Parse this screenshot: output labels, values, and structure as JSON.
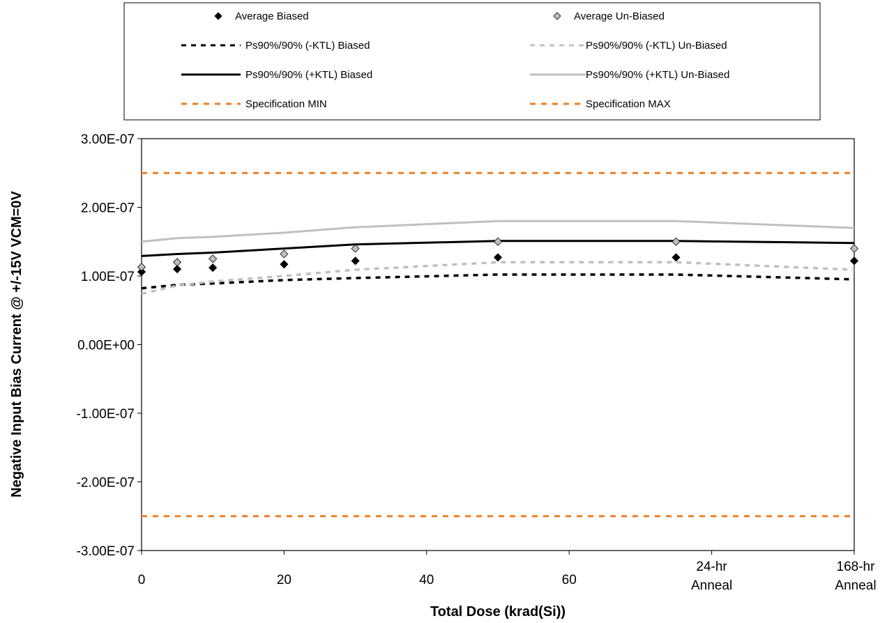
{
  "chart_data": {
    "type": "line",
    "title": "",
    "xlabel": "Total Dose (krad(Si))",
    "ylabel": "Negative Input Bias Current @ +/-15V VCM=0V",
    "x": [
      0,
      5,
      10,
      20,
      30,
      50,
      75,
      100
    ],
    "x_ticks": [
      {
        "value": 0,
        "label": "0"
      },
      {
        "value": 20,
        "label": "20"
      },
      {
        "value": 40,
        "label": "40"
      },
      {
        "value": 60,
        "label": "60"
      },
      {
        "value": 80,
        "label": "24-hr\nAnneal"
      },
      {
        "value": 100,
        "label": "168-hr\nAnneal"
      }
    ],
    "xlim": [
      0,
      100
    ],
    "ylim": [
      -3e-07,
      3e-07
    ],
    "y_ticks": [
      {
        "value": 3e-07,
        "label": "3.00E-07"
      },
      {
        "value": 2e-07,
        "label": "2.00E-07"
      },
      {
        "value": 1e-07,
        "label": "1.00E-07"
      },
      {
        "value": 0,
        "label": "0.00E+00"
      },
      {
        "value": -1e-07,
        "label": "-1.00E-07"
      },
      {
        "value": -2e-07,
        "label": "-2.00E-07"
      },
      {
        "value": -3e-07,
        "label": "-3.00E-07"
      }
    ],
    "grid": false,
    "legend_position": "top",
    "series": [
      {
        "name": "Average Biased",
        "kind": "marker",
        "marker": "diamond",
        "color": "#000000",
        "values": [
          1.06e-07,
          1.1e-07,
          1.12e-07,
          1.17e-07,
          1.22e-07,
          1.27e-07,
          1.27e-07,
          1.22e-07
        ]
      },
      {
        "name": "Average Un-Biased",
        "kind": "marker",
        "marker": "diamond",
        "color": "#bfbfbf",
        "values": [
          1.13e-07,
          1.2e-07,
          1.25e-07,
          1.32e-07,
          1.4e-07,
          1.5e-07,
          1.5e-07,
          1.4e-07
        ]
      },
      {
        "name": "Ps90%/90% (-KTL) Biased",
        "kind": "line",
        "dash": "dashed",
        "color": "#000000",
        "values": [
          8.2e-08,
          8.7e-08,
          8.9e-08,
          9.4e-08,
          9.7e-08,
          1.02e-07,
          1.02e-07,
          9.5e-08
        ]
      },
      {
        "name": "Ps90%/90% (-KTL) Un-Biased",
        "kind": "line",
        "dash": "dashed",
        "color": "#bfbfbf",
        "values": [
          7.4e-08,
          8.6e-08,
          9.2e-08,
          1e-07,
          1.09e-07,
          1.2e-07,
          1.2e-07,
          1.09e-07
        ]
      },
      {
        "name": "Ps90%/90% (+KTL) Biased",
        "kind": "line",
        "dash": "solid",
        "color": "#000000",
        "values": [
          1.29e-07,
          1.32e-07,
          1.34e-07,
          1.4e-07,
          1.46e-07,
          1.51e-07,
          1.51e-07,
          1.48e-07
        ]
      },
      {
        "name": "Ps90%/90% (+KTL) Un-Biased",
        "kind": "line",
        "dash": "solid",
        "color": "#bfbfbf",
        "values": [
          1.5e-07,
          1.55e-07,
          1.57e-07,
          1.63e-07,
          1.71e-07,
          1.8e-07,
          1.8e-07,
          1.7e-07
        ]
      },
      {
        "name": "Specification MIN",
        "kind": "line",
        "dash": "dashed",
        "color": "#f07f22",
        "values": [
          -2.5e-07,
          -2.5e-07,
          -2.5e-07,
          -2.5e-07,
          -2.5e-07,
          -2.5e-07,
          -2.5e-07,
          -2.5e-07
        ]
      },
      {
        "name": "Specification MAX",
        "kind": "line",
        "dash": "dashed",
        "color": "#f07f22",
        "values": [
          2.5e-07,
          2.5e-07,
          2.5e-07,
          2.5e-07,
          2.5e-07,
          2.5e-07,
          2.5e-07,
          2.5e-07
        ]
      }
    ]
  }
}
